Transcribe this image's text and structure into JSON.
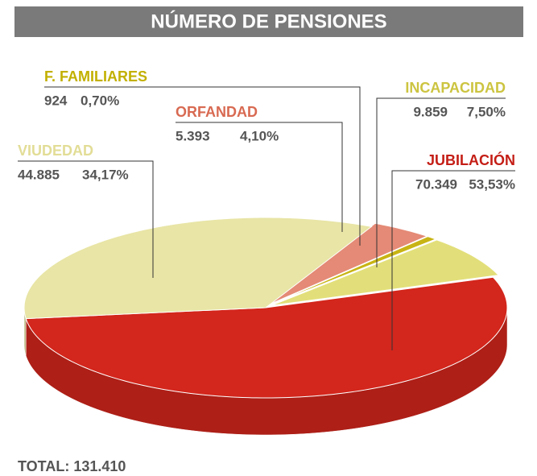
{
  "chart_data": {
    "type": "pie3d",
    "title": "NÚMERO DE PENSIONES",
    "categories": [
      "ORFANDAD",
      "F. FAMILIARES",
      "INCAPACIDAD",
      "JUBILACIÓN",
      "VIUDEDAD"
    ],
    "values": [
      5393,
      924,
      9859,
      70349,
      44885
    ],
    "value_labels": [
      "5.393",
      "924",
      "9.859",
      "70.349",
      "44.885"
    ],
    "percentages": [
      4.1,
      0.7,
      7.5,
      53.53,
      34.17
    ],
    "percentage_labels": [
      "4,10%",
      "0,70%",
      "7,50%",
      "53,53%",
      "34,17%"
    ],
    "colors": [
      "#e48a76",
      "#c8b414",
      "#e2df7a",
      "#d3261c",
      "#e8e5a6"
    ],
    "label_colors": [
      "#d86a52",
      "#c2b000",
      "#ccc440",
      "#c41e16",
      "#e2dd96"
    ],
    "total_label": "TOTAL: 131.410"
  }
}
